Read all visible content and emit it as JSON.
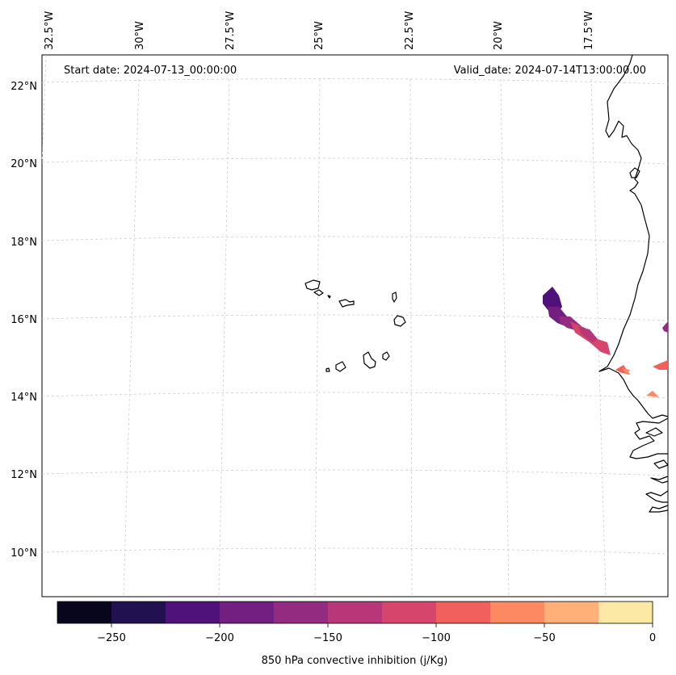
{
  "header": {
    "start_label": "Start date: 2024-07-13_00:00:00",
    "valid_label": "Valid_date: 2024-07-14T13:00:00.00"
  },
  "map": {
    "lon_ticks": [
      "32.5°W",
      "30°W",
      "27.5°W",
      "25°W",
      "22.5°W",
      "20°W",
      "17.5°W"
    ],
    "lat_ticks": [
      "22°N",
      "20°N",
      "18°N",
      "16°N",
      "14°N",
      "12°N",
      "10°N"
    ]
  },
  "colorbar": {
    "label": "850 hPa convective inhibition (j/Kg)",
    "ticks": [
      "−250",
      "−200",
      "−150",
      "−100",
      "−50",
      "0"
    ],
    "colors": [
      "#07061c",
      "#221150",
      "#4f127b",
      "#721f81",
      "#932b80",
      "#b73779",
      "#d6456c",
      "#f1605d",
      "#fc8961",
      "#feb078",
      "#fde9a6"
    ]
  }
}
